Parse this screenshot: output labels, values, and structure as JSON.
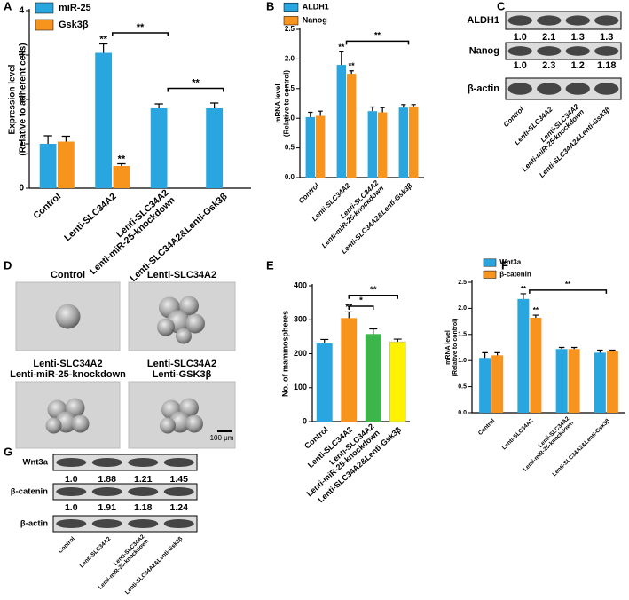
{
  "chart_data": [
    {
      "type": "bar",
      "panel": "A",
      "ylabel": [
        "Expression level",
        "(Relative to adherent cells)"
      ],
      "categories": [
        "Control",
        "Lenti-SLC34A2",
        [
          "Lenti-SLC34A2",
          "Lenti-miR-25-knockdown"
        ],
        "Lenti-SLC34A2&Lenti-Gsk3β"
      ],
      "series": [
        {
          "name": "miR-25",
          "color": "#29a6e0",
          "values": [
            1.0,
            3.05,
            1.8,
            1.8
          ],
          "errors": [
            0.18,
            0.2,
            0.1,
            0.12
          ]
        },
        {
          "name": "Gsk3β",
          "color": "#f7941d",
          "values": [
            1.05,
            0.5,
            null,
            null
          ],
          "errors": [
            0.12,
            0.05,
            null,
            null
          ]
        }
      ],
      "ylim": [
        0,
        4
      ],
      "yticks": [
        0,
        1,
        2,
        3,
        4
      ],
      "annotations": [
        {
          "text": "**",
          "series": 0,
          "category": 1
        },
        {
          "text": "**",
          "series": 1,
          "category": 1
        }
      ],
      "brackets": [
        {
          "text": "**",
          "from": 1,
          "to": 2,
          "y": 3.5
        },
        {
          "text": "**",
          "from": 2,
          "to": 3,
          "y": 2.25
        }
      ]
    },
    {
      "type": "bar",
      "panel": "B",
      "ylabel": [
        "mRNA level",
        "(Relative to control)"
      ],
      "categories": [
        "Control",
        "Lenti-SLC34A2",
        [
          "Lenti-SLC34A2",
          "Lenti-miR-25-knockdown"
        ],
        "Lenti-SLC34A2&Lenti-Gsk3β"
      ],
      "series": [
        {
          "name": "ALDH1",
          "color": "#29a6e0",
          "values": [
            1.02,
            1.9,
            1.12,
            1.18
          ],
          "errors": [
            0.08,
            0.22,
            0.07,
            0.05
          ]
        },
        {
          "name": "Nanog",
          "color": "#f7941d",
          "values": [
            1.04,
            1.75,
            1.1,
            1.2
          ],
          "errors": [
            0.08,
            0.05,
            0.08,
            0.03
          ]
        }
      ],
      "ylim": [
        0,
        2.5
      ],
      "yticks": [
        {
          "value": 0,
          "label": "0.0"
        },
        0.5,
        {
          "value": 1,
          "label": "1.0"
        },
        1.5,
        {
          "value": 2,
          "label": "2.0"
        },
        2.5
      ],
      "annotations": [
        {
          "text": "**",
          "series": 0,
          "category": 1
        },
        {
          "text": "**",
          "series": 1,
          "category": 1
        }
      ],
      "brackets": [
        {
          "text": "**",
          "from": 1,
          "to": 3,
          "y": 2.3
        }
      ]
    },
    {
      "type": "bar",
      "panel": "E",
      "ylabel": [
        "No. of mammospheres"
      ],
      "categories": [
        "Control",
        "Lenti-SLC34A2",
        [
          "Lenti-SLC34A2",
          "Lenti-miR-25-knockdown"
        ],
        "Lenti-SLC34A2&Lenti-Gsk3β"
      ],
      "series": [
        {
          "colors": [
            "#29a6e0",
            "#f7941d",
            "#3cb54a",
            "#fff200"
          ],
          "values": [
            230,
            305,
            258,
            235
          ],
          "errors": [
            12,
            18,
            15,
            8
          ]
        }
      ],
      "ylim": [
        0,
        400
      ],
      "yticks": [
        0,
        100,
        200,
        300,
        400
      ],
      "annotations": [
        {
          "text": "**",
          "series": 0,
          "category": 1
        }
      ],
      "brackets": [
        {
          "text": "*",
          "from": 1,
          "to": 2,
          "y": 340
        },
        {
          "text": "**",
          "from": 1,
          "to": 3,
          "y": 372
        }
      ]
    },
    {
      "type": "bar",
      "panel": "F",
      "ylabel": [
        "mRNA level",
        "(Relative to control)"
      ],
      "categories": [
        "Control",
        "Lenti-SLC34A2",
        [
          "Lenti-SLC34A2",
          "Lenti-miR-25-knockdown"
        ],
        "Lenti-SLC34A2&Lenti-Gsk3β"
      ],
      "series": [
        {
          "name": "Wnt3a",
          "color": "#29a6e0",
          "values": [
            1.05,
            2.18,
            1.22,
            1.15
          ],
          "errors": [
            0.1,
            0.1,
            0.03,
            0.05
          ]
        },
        {
          "name": "β-catenin",
          "color": "#f7941d",
          "values": [
            1.1,
            1.82,
            1.22,
            1.18
          ],
          "errors": [
            0.05,
            0.05,
            0.03,
            0.02
          ]
        }
      ],
      "ylim": [
        0,
        2.5
      ],
      "yticks": [
        {
          "value": 0,
          "label": "0.0"
        },
        0.5,
        {
          "value": 1,
          "label": "1.0"
        },
        1.5,
        {
          "value": 2,
          "label": "2.0"
        },
        2.5
      ],
      "annotations": [
        {
          "text": "**",
          "series": 0,
          "category": 1
        },
        {
          "text": "**",
          "series": 1,
          "category": 1
        }
      ],
      "brackets": [
        {
          "text": "**",
          "from": 1,
          "to": 3,
          "y": 2.35
        }
      ]
    }
  ],
  "blots": [
    {
      "panel": "C",
      "rows": [
        {
          "label": "ALDH1",
          "values": [
            "1.0",
            "2.1",
            "1.3",
            "1.3"
          ]
        },
        {
          "label": "Nanog",
          "values": [
            "1.0",
            "2.3",
            "1.2",
            "1.18"
          ]
        },
        {
          "label": "β-actin"
        }
      ],
      "categories": [
        "Control",
        "Lenti-SLC34A2",
        [
          "Lenti-SLC34A2",
          "Lenti-miR-25-knockdown"
        ],
        "Lenti-SLC34A2&Lenti-Gsk3β"
      ]
    },
    {
      "panel": "G",
      "rows": [
        {
          "label": "Wnt3a",
          "values": [
            "1.0",
            "1.88",
            "1.21",
            "1.45"
          ]
        },
        {
          "label": "β-catenin",
          "values": [
            "1.0",
            "1.91",
            "1.18",
            "1.24"
          ]
        },
        {
          "label": "β-actin"
        }
      ],
      "categories": [
        "Control",
        "Lenti-SLC34A2",
        [
          "Lenti-SLC34A2",
          "Lenti-miR-25-knockdown"
        ],
        "Lenti-SLC34A2&Lenti-Gsk3β"
      ]
    }
  ],
  "micrographs": {
    "panel": "D",
    "images": [
      {
        "label": [
          "Control"
        ]
      },
      {
        "label": [
          "Lenti-SLC34A2"
        ]
      },
      {
        "label": [
          "Lenti-SLC34A2",
          "Lenti-miR-25-knockdown"
        ]
      },
      {
        "label": [
          "Lenti-SLC34A2",
          "Lenti-GSK3β"
        ]
      }
    ],
    "scale_bar": "100 μm"
  }
}
